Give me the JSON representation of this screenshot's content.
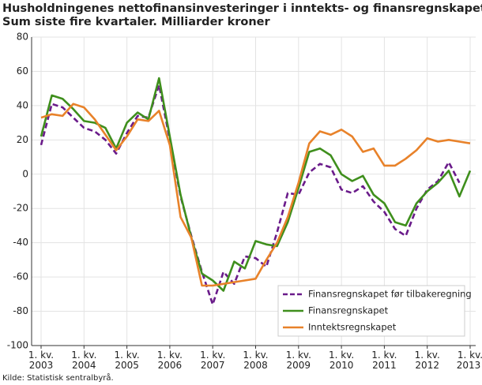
{
  "chart_data": {
    "type": "line",
    "title": "Husholdningenes nettofinansinvesteringer i inntekts- og finansregnskapet.",
    "subtitle": "Sum siste fire kvartaler. Milliarder kroner",
    "source": "Kilde: Statistisk sentralbyrå.",
    "categories": [
      [
        "1. kv.",
        "2003"
      ],
      null,
      null,
      null,
      [
        "1. kv.",
        "2004"
      ],
      null,
      null,
      null,
      [
        "1. kv.",
        "2005"
      ],
      null,
      null,
      null,
      [
        "1. kv.",
        "2006"
      ],
      null,
      null,
      null,
      [
        "1. kv.",
        "2007"
      ],
      null,
      null,
      null,
      [
        "1. kv.",
        "2008"
      ],
      null,
      null,
      null,
      [
        "1. kv.",
        "2009"
      ],
      null,
      null,
      null,
      [
        "1. kv.",
        "2010"
      ],
      null,
      null,
      null,
      [
        "1. kv.",
        "2011"
      ],
      null,
      null,
      null,
      [
        "1. kv.",
        "2012"
      ],
      null,
      null,
      null,
      [
        "1. kv.",
        "2013"
      ]
    ],
    "series": [
      {
        "name": "Finansregnskapet før tilbakeregning",
        "color": "#6a1b8a",
        "dashed": true,
        "values": [
          17,
          41,
          39,
          33,
          27,
          25,
          20,
          12,
          24,
          34,
          33,
          52,
          20,
          -13,
          -36,
          -57,
          -76,
          -57,
          -64,
          -48,
          -49,
          -54,
          -34,
          -11,
          -12,
          1,
          6,
          4,
          -9,
          -11,
          -7,
          -16,
          -22,
          -32,
          -36,
          -20,
          -9,
          -4,
          7,
          -5,
          null
        ]
      },
      {
        "name": "Finansregnskapet",
        "color": "#3f8f1d",
        "dashed": false,
        "values": [
          22,
          46,
          44,
          38,
          31,
          30,
          27,
          15,
          30,
          36,
          32,
          56,
          22,
          -12,
          -37,
          -58,
          -62,
          -68,
          -51,
          -55,
          -39,
          -41,
          -42,
          -28,
          -8,
          13,
          15,
          11,
          0,
          -4,
          -1,
          -12,
          -17,
          -28,
          -30,
          -17,
          -10,
          -5,
          2,
          -13,
          2
        ]
      },
      {
        "name": "Inntektsregnskapet",
        "color": "#e8822a",
        "dashed": false,
        "values": [
          33,
          35,
          34,
          41,
          39,
          32,
          23,
          14,
          22,
          32,
          31,
          37,
          17,
          -25,
          -37,
          -65,
          -65,
          -64,
          -63,
          -62,
          -61,
          -50,
          -40,
          -25,
          -5,
          18,
          25,
          23,
          26,
          22,
          13,
          15,
          5,
          5,
          9,
          14,
          21,
          19,
          20,
          19,
          18
        ]
      }
    ],
    "ylim": [
      -100,
      80
    ],
    "yticks": [
      -100,
      -80,
      -60,
      -40,
      -20,
      0,
      20,
      40,
      60,
      80
    ],
    "grid": true,
    "legend": "lower right"
  }
}
